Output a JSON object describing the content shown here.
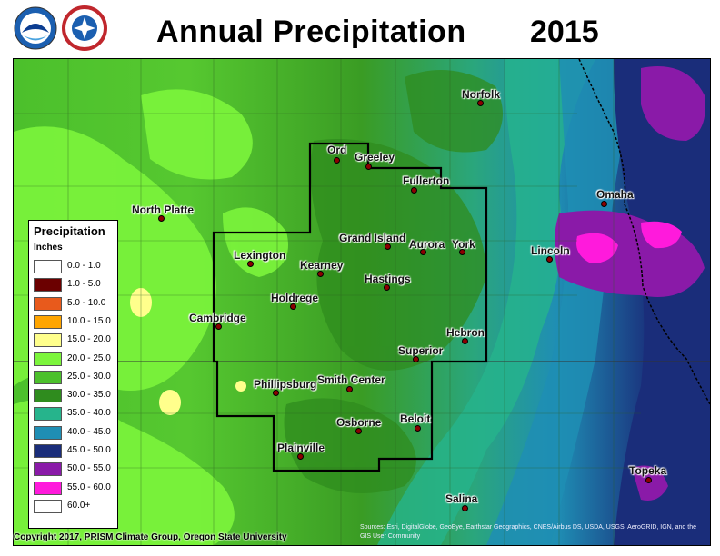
{
  "header": {
    "title": "Annual Precipitation",
    "year": "2015"
  },
  "logos": {
    "left": "noaa-logo",
    "right": "nws-logo",
    "nws_text": "NATIONAL WEATHER SERVICE",
    "noaa_text": "NOAA"
  },
  "legend": {
    "title": "Precipitation",
    "units": "Inches",
    "items": [
      {
        "label": "0.0 - 1.0",
        "color": "#ffffff"
      },
      {
        "label": "1.0 - 5.0",
        "color": "#6b0000"
      },
      {
        "label": "5.0 - 10.0",
        "color": "#e85a1c"
      },
      {
        "label": "10.0 - 15.0",
        "color": "#ffa500"
      },
      {
        "label": "15.0 - 20.0",
        "color": "#ffff8c"
      },
      {
        "label": "20.0 - 25.0",
        "color": "#7cf53c"
      },
      {
        "label": "25.0 - 30.0",
        "color": "#4cc02c"
      },
      {
        "label": "30.0 - 35.0",
        "color": "#2f8c1e"
      },
      {
        "label": "35.0 - 40.0",
        "color": "#26b48c"
      },
      {
        "label": "40.0 - 45.0",
        "color": "#1f8eb4"
      },
      {
        "label": "45.0 - 50.0",
        "color": "#1a2d7a"
      },
      {
        "label": "50.0 - 55.0",
        "color": "#8a1aa8"
      },
      {
        "label": "55.0 - 60.0",
        "color": "#ff1adc"
      },
      {
        "label": "60.0+",
        "color": "#ffffff"
      }
    ]
  },
  "cities": [
    {
      "name": "Norfolk"
    },
    {
      "name": "Ord"
    },
    {
      "name": "Greeley"
    },
    {
      "name": "Fullerton"
    },
    {
      "name": "North Platte"
    },
    {
      "name": "Omaha"
    },
    {
      "name": "Grand Island"
    },
    {
      "name": "Aurora"
    },
    {
      "name": "York"
    },
    {
      "name": "Lexington"
    },
    {
      "name": "Kearney"
    },
    {
      "name": "Lincoln"
    },
    {
      "name": "Hastings"
    },
    {
      "name": "Holdrege"
    },
    {
      "name": "Cambridge"
    },
    {
      "name": "Hebron"
    },
    {
      "name": "Superior"
    },
    {
      "name": "Phillipsburg"
    },
    {
      "name": "Smith Center"
    },
    {
      "name": "Osborne"
    },
    {
      "name": "Beloit"
    },
    {
      "name": "Plainville"
    },
    {
      "name": "Topeka"
    },
    {
      "name": "Salina"
    }
  ],
  "footer": {
    "copyright": "Copyright 2017, PRISM Climate Group, Oregon State University",
    "sources": "Sources: Esri, DigitalGlobe, GeoEye, Earthstar Geographics, CNES/Airbus DS, USDA, USGS, AeroGRID, IGN, and the GIS User Community"
  }
}
